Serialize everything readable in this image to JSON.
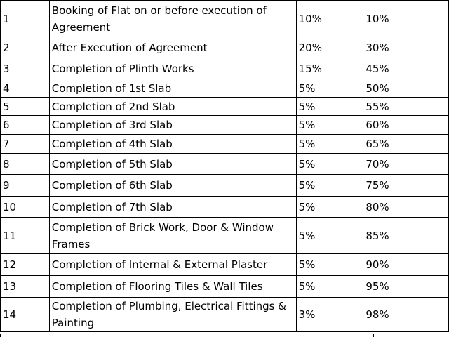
{
  "schedule": {
    "rows": [
      {
        "no": "1",
        "stage": "Booking of Flat on or before execution of Agreement",
        "percent": "10%",
        "cumulative": "10%"
      },
      {
        "no": "2",
        "stage": "After Execution of Agreement",
        "percent": "20%",
        "cumulative": "30%"
      },
      {
        "no": "3",
        "stage": "Completion of Plinth Works",
        "percent": "15%",
        "cumulative": "45%"
      },
      {
        "no": "4",
        "stage": "Completion of 1st Slab",
        "percent": "5%",
        "cumulative": "50%"
      },
      {
        "no": "5",
        "stage": "Completion of 2nd Slab",
        "percent": "5%",
        "cumulative": "55%"
      },
      {
        "no": "6",
        "stage": "Completion of 3rd Slab",
        "percent": "5%",
        "cumulative": "60%"
      },
      {
        "no": "7",
        "stage": "Completion of 4th Slab",
        "percent": "5%",
        "cumulative": "65%"
      },
      {
        "no": "8",
        "stage": "Completion of 5th Slab",
        "percent": "5%",
        "cumulative": "70%"
      },
      {
        "no": "9",
        "stage": "Completion of 6th Slab",
        "percent": "5%",
        "cumulative": "75%"
      },
      {
        "no": "10",
        "stage": "Completion of 7th Slab",
        "percent": "5%",
        "cumulative": "80%"
      },
      {
        "no": "11",
        "stage": "Completion of Brick Work, Door & Window Frames",
        "percent": "5%",
        "cumulative": "85%"
      },
      {
        "no": "12",
        "stage": "Completion of Internal & External Plaster",
        "percent": "5%",
        "cumulative": "90%"
      },
      {
        "no": "13",
        "stage": "Completion of Flooring Tiles & Wall Tiles",
        "percent": "5%",
        "cumulative": "95%"
      },
      {
        "no": "14",
        "stage": "Completion of Plumbing, Electrical Fittings & Painting",
        "percent": "3%",
        "cumulative": "98%"
      }
    ]
  }
}
